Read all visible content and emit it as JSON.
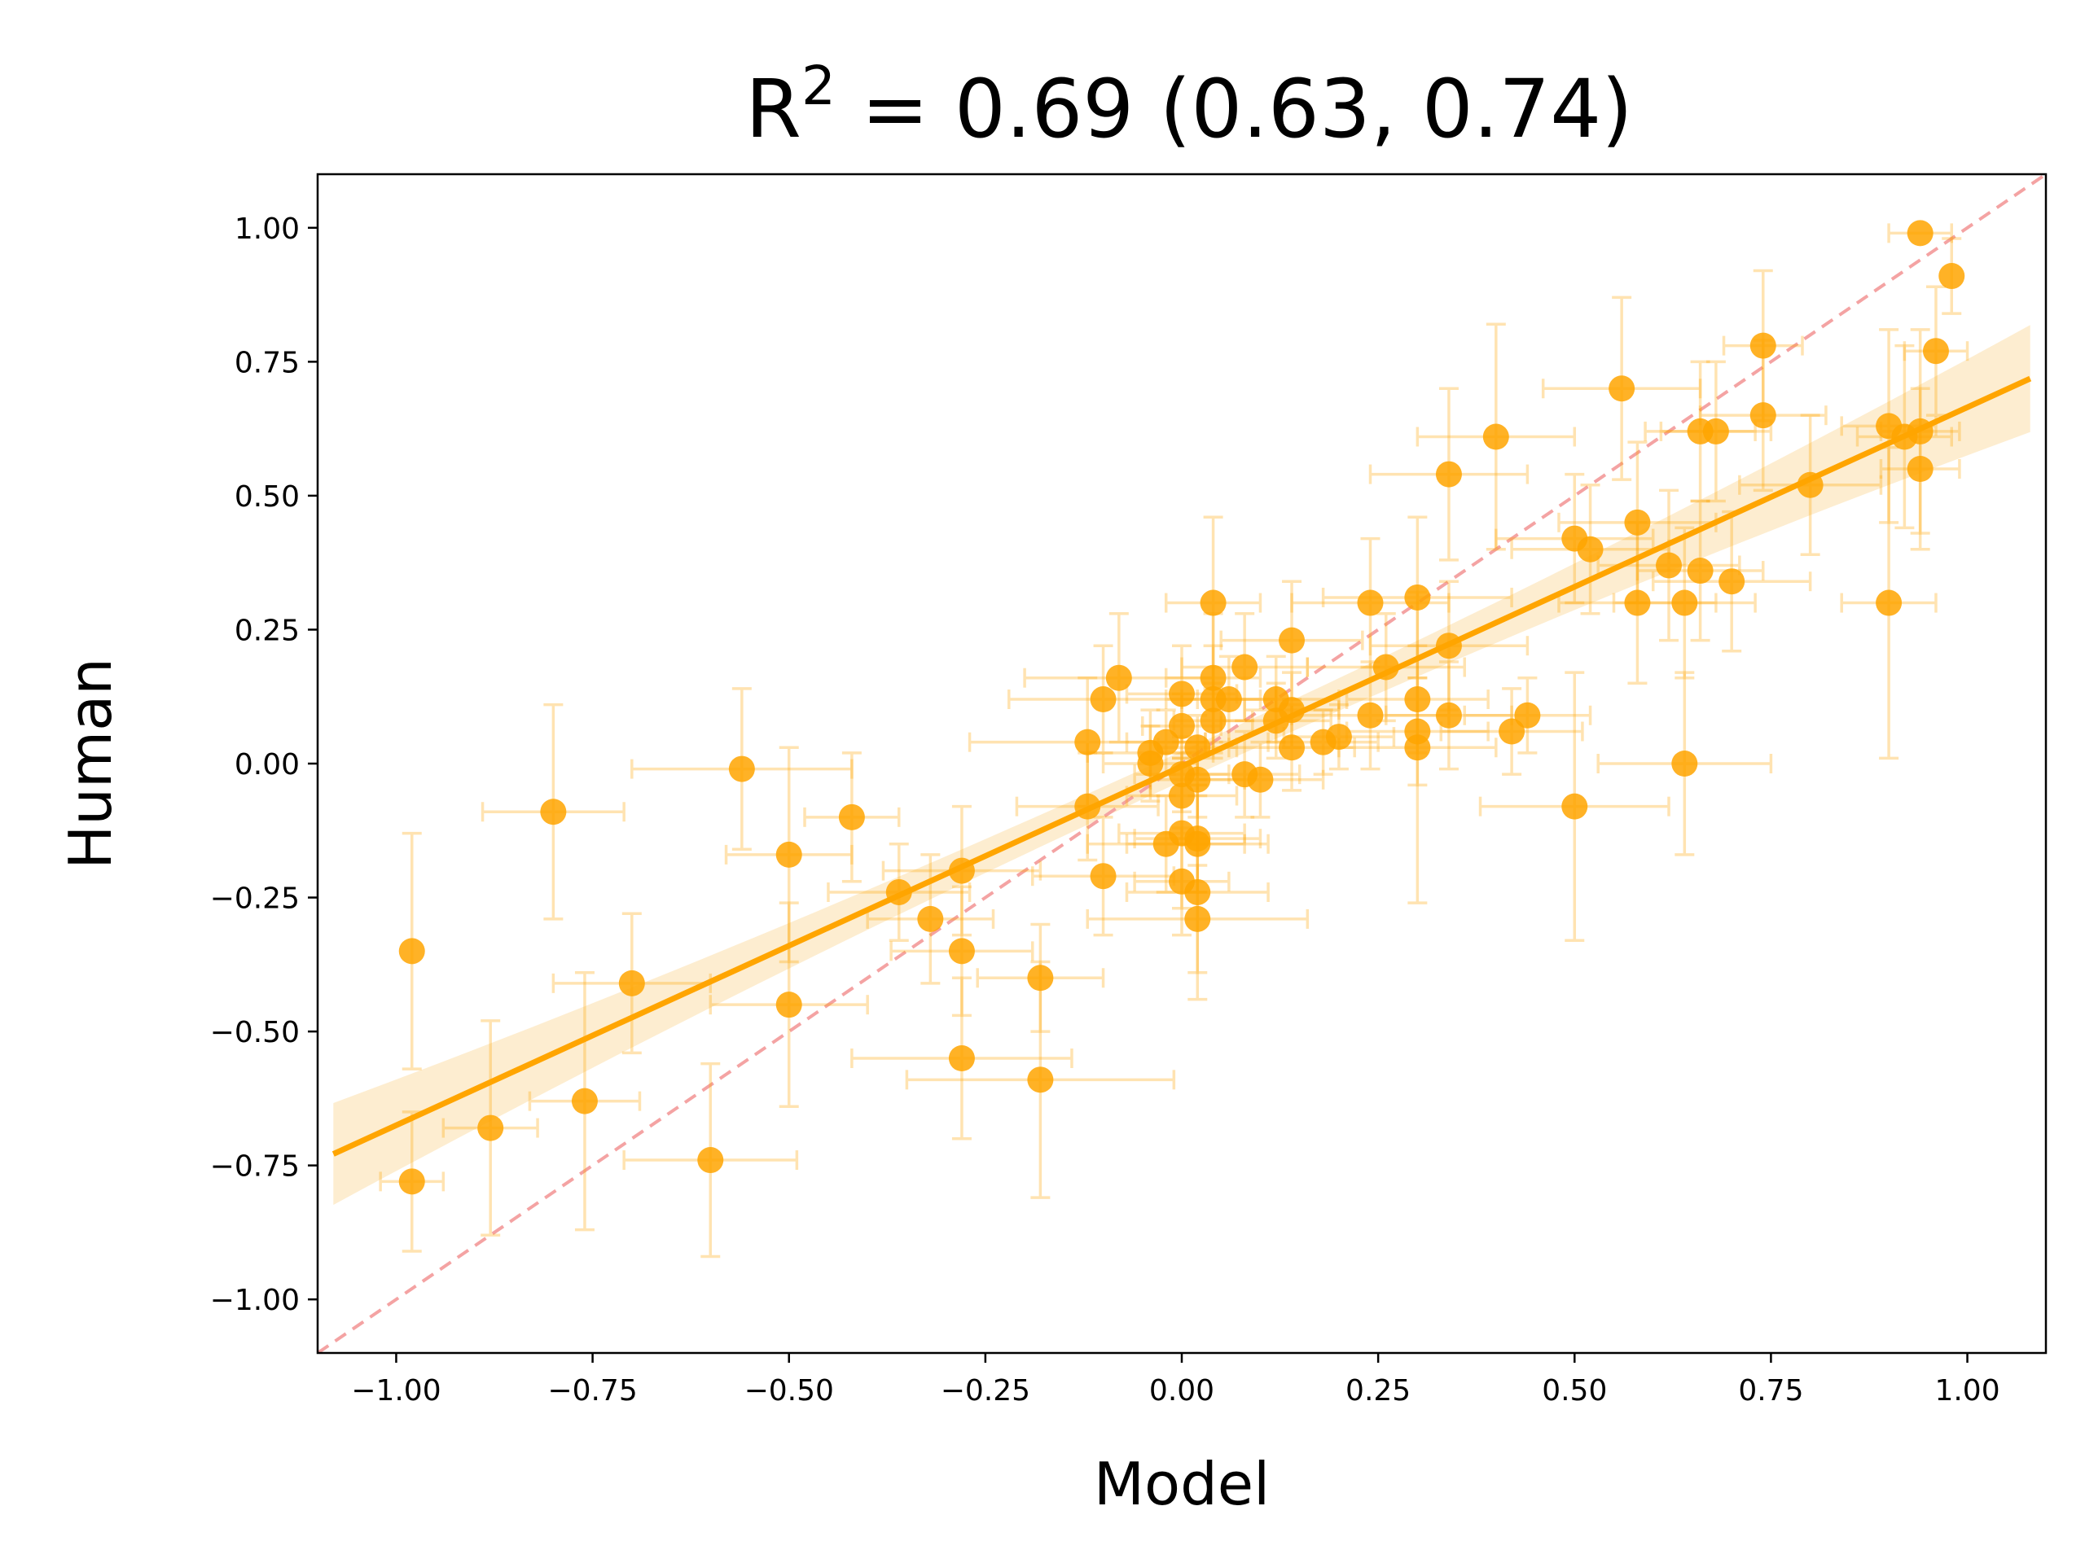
{
  "chart_data": {
    "type": "scatter",
    "title_parts": {
      "base": "R",
      "exponent": "2",
      "rest": " = 0.69 (0.63, 0.74)"
    },
    "xlabel": "Model",
    "ylabel": "Human",
    "xlim": [
      -1.1,
      1.1
    ],
    "ylim": [
      -1.1,
      1.1
    ],
    "xticks": [
      -1.0,
      -0.75,
      -0.5,
      -0.25,
      0.0,
      0.25,
      0.5,
      0.75,
      1.0
    ],
    "yticks": [
      -1.0,
      -0.75,
      -0.5,
      -0.25,
      0.0,
      0.25,
      0.5,
      0.75,
      1.0
    ],
    "xtick_labels": [
      "−1.00",
      "−0.75",
      "−0.50",
      "−0.25",
      "0.00",
      "0.25",
      "0.50",
      "0.75",
      "1.00"
    ],
    "ytick_labels": [
      "−1.00",
      "−0.75",
      "−0.50",
      "−0.25",
      "0.00",
      "0.25",
      "0.50",
      "0.75",
      "1.00"
    ],
    "colors": {
      "points": "#ffa500",
      "fit_line": "#ffa500",
      "band": "#fde8c4",
      "identity": "#f4a3a3"
    },
    "fit": {
      "slope": 0.67,
      "intercept": -0.005,
      "x_range": [
        -1.08,
        1.08
      ]
    },
    "band_halfwidth": {
      "left": 0.095,
      "center": 0.028,
      "right": 0.1
    },
    "identity_line": {
      "x": [
        -1.1,
        1.1
      ],
      "y": [
        -1.1,
        1.1
      ]
    },
    "points": [
      {
        "x": -0.98,
        "y": -0.35,
        "xerr": 0.0,
        "yerr": 0.22
      },
      {
        "x": -0.98,
        "y": -0.78,
        "xerr": 0.04,
        "yerr": 0.13
      },
      {
        "x": -0.88,
        "y": -0.68,
        "xerr": 0.06,
        "yerr": 0.2
      },
      {
        "x": -0.8,
        "y": -0.09,
        "xerr": 0.09,
        "yerr": 0.2
      },
      {
        "x": -0.76,
        "y": -0.63,
        "xerr": 0.07,
        "yerr": 0.24
      },
      {
        "x": -0.7,
        "y": -0.41,
        "xerr": 0.1,
        "yerr": 0.13
      },
      {
        "x": -0.6,
        "y": -0.74,
        "xerr": 0.11,
        "yerr": 0.18
      },
      {
        "x": -0.56,
        "y": -0.01,
        "xerr": 0.14,
        "yerr": 0.15
      },
      {
        "x": -0.5,
        "y": -0.17,
        "xerr": 0.08,
        "yerr": 0.2
      },
      {
        "x": -0.5,
        "y": -0.45,
        "xerr": 0.1,
        "yerr": 0.19
      },
      {
        "x": -0.42,
        "y": -0.1,
        "xerr": 0.06,
        "yerr": 0.12
      },
      {
        "x": -0.36,
        "y": -0.24,
        "xerr": 0.09,
        "yerr": 0.09
      },
      {
        "x": -0.32,
        "y": -0.29,
        "xerr": 0.08,
        "yerr": 0.12
      },
      {
        "x": -0.28,
        "y": -0.2,
        "xerr": 0.1,
        "yerr": 0.12
      },
      {
        "x": -0.28,
        "y": -0.35,
        "xerr": 0.09,
        "yerr": 0.12
      },
      {
        "x": -0.28,
        "y": -0.55,
        "xerr": 0.14,
        "yerr": 0.15
      },
      {
        "x": -0.18,
        "y": -0.4,
        "xerr": 0.08,
        "yerr": 0.1
      },
      {
        "x": -0.18,
        "y": -0.59,
        "xerr": 0.17,
        "yerr": 0.22
      },
      {
        "x": -0.12,
        "y": 0.04,
        "xerr": 0.15,
        "yerr": 0.12
      },
      {
        "x": -0.12,
        "y": -0.08,
        "xerr": 0.09,
        "yerr": 0.1
      },
      {
        "x": -0.1,
        "y": 0.12,
        "xerr": 0.12,
        "yerr": 0.1
      },
      {
        "x": -0.1,
        "y": -0.21,
        "xerr": 0.09,
        "yerr": 0.11
      },
      {
        "x": -0.08,
        "y": 0.16,
        "xerr": 0.12,
        "yerr": 0.12
      },
      {
        "x": -0.04,
        "y": 0.02,
        "xerr": 0.08,
        "yerr": 0.08
      },
      {
        "x": -0.04,
        "y": 0.0,
        "xerr": 0.06,
        "yerr": 0.07
      },
      {
        "x": -0.02,
        "y": -0.15,
        "xerr": 0.1,
        "yerr": 0.09
      },
      {
        "x": -0.02,
        "y": 0.04,
        "xerr": 0.05,
        "yerr": 0.06
      },
      {
        "x": 0.0,
        "y": 0.13,
        "xerr": 0.07,
        "yerr": 0.09
      },
      {
        "x": 0.0,
        "y": 0.07,
        "xerr": 0.05,
        "yerr": 0.06
      },
      {
        "x": 0.0,
        "y": -0.02,
        "xerr": 0.06,
        "yerr": 0.07
      },
      {
        "x": 0.0,
        "y": -0.06,
        "xerr": 0.07,
        "yerr": 0.08
      },
      {
        "x": 0.0,
        "y": -0.13,
        "xerr": 0.08,
        "yerr": 0.14
      },
      {
        "x": 0.0,
        "y": -0.22,
        "xerr": 0.06,
        "yerr": 0.1
      },
      {
        "x": 0.02,
        "y": 0.03,
        "xerr": 0.05,
        "yerr": 0.06
      },
      {
        "x": 0.02,
        "y": -0.03,
        "xerr": 0.06,
        "yerr": 0.07
      },
      {
        "x": 0.02,
        "y": -0.14,
        "xerr": 0.08,
        "yerr": 0.1
      },
      {
        "x": 0.02,
        "y": -0.15,
        "xerr": 0.09,
        "yerr": 0.09
      },
      {
        "x": 0.02,
        "y": -0.24,
        "xerr": 0.09,
        "yerr": 0.2
      },
      {
        "x": 0.02,
        "y": -0.29,
        "xerr": 0.14,
        "yerr": 0.1
      },
      {
        "x": 0.04,
        "y": 0.3,
        "xerr": 0.06,
        "yerr": 0.16
      },
      {
        "x": 0.04,
        "y": 0.16,
        "xerr": 0.06,
        "yerr": 0.12
      },
      {
        "x": 0.04,
        "y": 0.12,
        "xerr": 0.06,
        "yerr": 0.1
      },
      {
        "x": 0.04,
        "y": 0.08,
        "xerr": 0.05,
        "yerr": 0.07
      },
      {
        "x": 0.06,
        "y": 0.12,
        "xerr": 0.06,
        "yerr": 0.08
      },
      {
        "x": 0.08,
        "y": 0.18,
        "xerr": 0.08,
        "yerr": 0.1
      },
      {
        "x": 0.08,
        "y": -0.02,
        "xerr": 0.07,
        "yerr": 0.08
      },
      {
        "x": 0.1,
        "y": -0.03,
        "xerr": 0.08,
        "yerr": 0.07
      },
      {
        "x": 0.12,
        "y": 0.12,
        "xerr": 0.08,
        "yerr": 0.08
      },
      {
        "x": 0.12,
        "y": 0.08,
        "xerr": 0.07,
        "yerr": 0.07
      },
      {
        "x": 0.14,
        "y": 0.23,
        "xerr": 0.09,
        "yerr": 0.11
      },
      {
        "x": 0.14,
        "y": 0.1,
        "xerr": 0.06,
        "yerr": 0.07
      },
      {
        "x": 0.14,
        "y": 0.03,
        "xerr": 0.08,
        "yerr": 0.08
      },
      {
        "x": 0.18,
        "y": 0.04,
        "xerr": 0.07,
        "yerr": 0.06
      },
      {
        "x": 0.2,
        "y": 0.05,
        "xerr": 0.07,
        "yerr": 0.06
      },
      {
        "x": 0.24,
        "y": 0.3,
        "xerr": 0.1,
        "yerr": 0.12
      },
      {
        "x": 0.24,
        "y": 0.09,
        "xerr": 0.1,
        "yerr": 0.1
      },
      {
        "x": 0.26,
        "y": 0.18,
        "xerr": 0.1,
        "yerr": 0.1
      },
      {
        "x": 0.3,
        "y": 0.31,
        "xerr": 0.12,
        "yerr": 0.15
      },
      {
        "x": 0.3,
        "y": 0.12,
        "xerr": 0.09,
        "yerr": 0.1
      },
      {
        "x": 0.3,
        "y": 0.06,
        "xerr": 0.09,
        "yerr": 0.1
      },
      {
        "x": 0.3,
        "y": 0.03,
        "xerr": 0.1,
        "yerr": 0.29
      },
      {
        "x": 0.34,
        "y": 0.54,
        "xerr": 0.1,
        "yerr": 0.16
      },
      {
        "x": 0.34,
        "y": 0.22,
        "xerr": 0.1,
        "yerr": 0.12
      },
      {
        "x": 0.34,
        "y": 0.09,
        "xerr": 0.08,
        "yerr": 0.1
      },
      {
        "x": 0.4,
        "y": 0.61,
        "xerr": 0.1,
        "yerr": 0.21
      },
      {
        "x": 0.42,
        "y": 0.06,
        "xerr": 0.09,
        "yerr": 0.08
      },
      {
        "x": 0.44,
        "y": 0.09,
        "xerr": 0.08,
        "yerr": 0.07
      },
      {
        "x": 0.5,
        "y": 0.42,
        "xerr": 0.1,
        "yerr": 0.12
      },
      {
        "x": 0.5,
        "y": -0.08,
        "xerr": 0.12,
        "yerr": 0.25
      },
      {
        "x": 0.52,
        "y": 0.4,
        "xerr": 0.1,
        "yerr": 0.12
      },
      {
        "x": 0.56,
        "y": 0.7,
        "xerr": 0.1,
        "yerr": 0.17
      },
      {
        "x": 0.58,
        "y": 0.45,
        "xerr": 0.1,
        "yerr": 0.15
      },
      {
        "x": 0.58,
        "y": 0.3,
        "xerr": 0.1,
        "yerr": 0.15
      },
      {
        "x": 0.62,
        "y": 0.37,
        "xerr": 0.09,
        "yerr": 0.14
      },
      {
        "x": 0.64,
        "y": 0.3,
        "xerr": 0.09,
        "yerr": 0.14
      },
      {
        "x": 0.64,
        "y": 0.0,
        "xerr": 0.11,
        "yerr": 0.17
      },
      {
        "x": 0.66,
        "y": 0.62,
        "xerr": 0.07,
        "yerr": 0.13
      },
      {
        "x": 0.66,
        "y": 0.36,
        "xerr": 0.08,
        "yerr": 0.13
      },
      {
        "x": 0.68,
        "y": 0.62,
        "xerr": 0.07,
        "yerr": 0.13
      },
      {
        "x": 0.7,
        "y": 0.34,
        "xerr": 0.1,
        "yerr": 0.13
      },
      {
        "x": 0.74,
        "y": 0.78,
        "xerr": 0.05,
        "yerr": 0.14
      },
      {
        "x": 0.74,
        "y": 0.65,
        "xerr": 0.08,
        "yerr": 0.14
      },
      {
        "x": 0.8,
        "y": 0.52,
        "xerr": 0.09,
        "yerr": 0.13
      },
      {
        "x": 0.9,
        "y": 0.63,
        "xerr": 0.06,
        "yerr": 0.18
      },
      {
        "x": 0.9,
        "y": 0.3,
        "xerr": 0.06,
        "yerr": 0.29
      },
      {
        "x": 0.92,
        "y": 0.61,
        "xerr": 0.06,
        "yerr": 0.17
      },
      {
        "x": 0.94,
        "y": 0.99,
        "xerr": 0.04,
        "yerr": 0.0
      },
      {
        "x": 0.94,
        "y": 0.62,
        "xerr": 0.05,
        "yerr": 0.19
      },
      {
        "x": 0.94,
        "y": 0.55,
        "xerr": 0.05,
        "yerr": 0.15
      },
      {
        "x": 0.96,
        "y": 0.77,
        "xerr": 0.04,
        "yerr": 0.12
      },
      {
        "x": 0.98,
        "y": 0.91,
        "xerr": 0.0,
        "yerr": 0.07
      }
    ]
  }
}
